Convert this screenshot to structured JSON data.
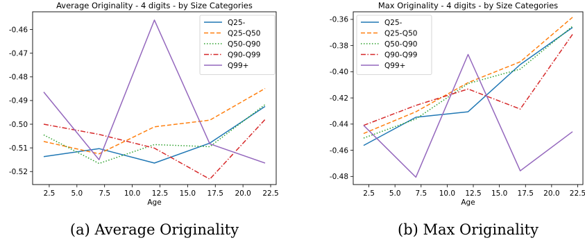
{
  "colors": {
    "series": [
      "#1f77b4",
      "#ff7f0e",
      "#2ca02c",
      "#d62728",
      "#9467bd"
    ]
  },
  "chart_data": [
    {
      "type": "line",
      "title": "Average Originality - 4 digits -  by Size Categories",
      "xlabel": "Age",
      "ylabel": "",
      "caption": "(a) Average Originality",
      "xlim": [
        1.0,
        23.0
      ],
      "ylim": [
        -0.5255,
        -0.4525
      ],
      "xticks": [
        2.5,
        5.0,
        7.5,
        10.0,
        12.5,
        15.0,
        17.5,
        20.0,
        22.5
      ],
      "xtick_labels": [
        "2.5",
        "5.0",
        "7.5",
        "10.0",
        "12.5",
        "15.0",
        "17.5",
        "20.0",
        "22.5"
      ],
      "yticks": [
        -0.52,
        -0.51,
        -0.5,
        -0.49,
        -0.48,
        -0.47,
        -0.46
      ],
      "ytick_labels": [
        "-0.52",
        "-0.51",
        "-0.50",
        "-0.49",
        "-0.48",
        "-0.47",
        "-0.46"
      ],
      "grid": false,
      "legend_position": "top-right",
      "x": [
        2,
        7,
        12,
        17,
        22
      ],
      "series": [
        {
          "name": "Q25-",
          "style": "solid",
          "values": [
            -0.5137,
            -0.5103,
            -0.5164,
            -0.508,
            -0.4925
          ]
        },
        {
          "name": "Q25-Q50",
          "style": "dashed",
          "values": [
            -0.5073,
            -0.5125,
            -0.5011,
            -0.4983,
            -0.4849
          ]
        },
        {
          "name": "Q50-Q90",
          "style": "dotted",
          "values": [
            -0.5045,
            -0.5166,
            -0.5086,
            -0.5095,
            -0.4917
          ]
        },
        {
          "name": "Q90-Q99",
          "style": "dashdot",
          "values": [
            -0.5,
            -0.5043,
            -0.5101,
            -0.5232,
            -0.498
          ]
        },
        {
          "name": "Q99+",
          "style": "solid",
          "values": [
            -0.4864,
            -0.515,
            -0.456,
            -0.5083,
            -0.5164
          ]
        }
      ]
    },
    {
      "type": "line",
      "title": "Max Originality - 4 digits -  by Size Categories",
      "xlabel": "Age",
      "ylabel": "",
      "caption": "(b) Max Originality",
      "xlim": [
        1.0,
        23.0
      ],
      "ylim": [
        -0.4862,
        -0.3542
      ],
      "xticks": [
        2.5,
        5.0,
        7.5,
        10.0,
        12.5,
        15.0,
        17.5,
        20.0,
        22.5
      ],
      "xtick_labels": [
        "2.5",
        "5.0",
        "7.5",
        "10.0",
        "12.5",
        "15.0",
        "17.5",
        "20.0",
        "22.5"
      ],
      "yticks": [
        -0.48,
        -0.46,
        -0.44,
        -0.42,
        -0.4,
        -0.38,
        -0.36
      ],
      "ytick_labels": [
        "-0.48",
        "-0.46",
        "-0.44",
        "-0.42",
        "-0.40",
        "-0.38",
        "-0.36"
      ],
      "grid": false,
      "legend_position": "top-left",
      "x": [
        2,
        7,
        12,
        17,
        22
      ],
      "series": [
        {
          "name": "Q25-",
          "style": "solid",
          "values": [
            -0.4563,
            -0.4348,
            -0.4306,
            -0.3945,
            -0.3662
          ]
        },
        {
          "name": "Q25-Q50",
          "style": "dashed",
          "values": [
            -0.4472,
            -0.4306,
            -0.4083,
            -0.3924,
            -0.3584
          ]
        },
        {
          "name": "Q50-Q90",
          "style": "dotted",
          "values": [
            -0.4507,
            -0.4361,
            -0.409,
            -0.398,
            -0.3653
          ]
        },
        {
          "name": "Q90-Q99",
          "style": "dashdot",
          "values": [
            -0.441,
            -0.4257,
            -0.4132,
            -0.4285,
            -0.3715
          ]
        },
        {
          "name": "Q99+",
          "style": "solid",
          "values": [
            -0.441,
            -0.4806,
            -0.3868,
            -0.4757,
            -0.4458
          ]
        }
      ]
    }
  ]
}
